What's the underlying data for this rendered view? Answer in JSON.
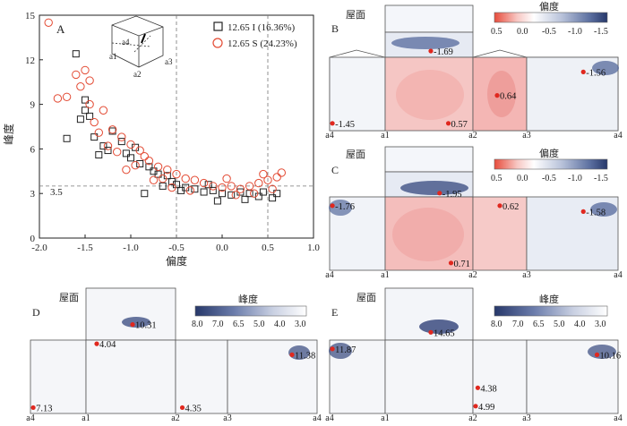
{
  "panels": {
    "A": {
      "label": "A",
      "xlabel": "偏度",
      "ylabel": "峰度",
      "hline_label": "3.5",
      "legend": [
        {
          "marker": "square",
          "label": "12.65 I (16.36%)",
          "color": "#222222"
        },
        {
          "marker": "circle",
          "label": "12.65 S (24.23%)",
          "color": "#e34a33"
        }
      ],
      "inset_labels": [
        "a1",
        "a2",
        "a3",
        "a4"
      ]
    },
    "B": {
      "label": "B",
      "roof_label": "屋面",
      "colorbar_title": "偏度"
    },
    "C": {
      "label": "C",
      "roof_label": "屋面",
      "colorbar_title": "偏度"
    },
    "D": {
      "label": "D",
      "roof_label": "屋面",
      "colorbar_title": "峰度"
    },
    "E": {
      "label": "E",
      "roof_label": "屋面",
      "colorbar_title": "峰度"
    }
  },
  "skew_colorbar": {
    "ticks": [
      "0.5",
      "0.0",
      "-0.5",
      "-1.0",
      "-1.5"
    ]
  },
  "kurt_colorbar": {
    "ticks": [
      "8.0",
      "7.0",
      "6.5",
      "5.0",
      "4.0",
      "3.0"
    ]
  },
  "corner_labels": [
    "a4",
    "a1",
    "a2",
    "a3",
    "a4"
  ],
  "annotations": {
    "B": [
      {
        "text": "-1.69",
        "face": "roof",
        "u": 0.52,
        "v": 0.75
      },
      {
        "text": "-1.56",
        "face": "f4",
        "u": 0.62,
        "v": 0.2
      },
      {
        "text": "-1.45",
        "face": "f1",
        "u": 0.05,
        "v": 0.9
      },
      {
        "text": "0.57",
        "face": "f2",
        "u": 0.72,
        "v": 0.9
      },
      {
        "text": "0.64",
        "face": "f3",
        "u": 0.45,
        "v": 0.52
      }
    ],
    "C": [
      {
        "text": "-1.95",
        "face": "roof",
        "u": 0.62,
        "v": 0.85
      },
      {
        "text": "-1.76",
        "face": "f1",
        "u": 0.05,
        "v": 0.12
      },
      {
        "text": "-1.58",
        "face": "f4",
        "u": 0.62,
        "v": 0.2
      },
      {
        "text": "0.62",
        "face": "f3",
        "u": 0.5,
        "v": 0.12
      },
      {
        "text": "0.71",
        "face": "f2",
        "u": 0.75,
        "v": 0.9
      }
    ],
    "D": [
      {
        "text": "10.31",
        "face": "roof",
        "u": 0.52,
        "v": 0.7
      },
      {
        "text": "4.04",
        "face": "f2",
        "u": 0.12,
        "v": 0.05
      },
      {
        "text": "11.38",
        "face": "f4",
        "u": 0.72,
        "v": 0.2
      },
      {
        "text": "7.13",
        "face": "f1",
        "u": 0.05,
        "v": 0.92
      },
      {
        "text": "4.35",
        "face": "f3",
        "u": 0.13,
        "v": 0.92
      }
    ],
    "E": [
      {
        "text": "14.65",
        "face": "roof",
        "u": 0.52,
        "v": 0.85
      },
      {
        "text": "11.87",
        "face": "f1",
        "u": 0.05,
        "v": 0.12
      },
      {
        "text": "10.16",
        "face": "f4",
        "u": 0.77,
        "v": 0.2
      },
      {
        "text": "4.38",
        "face": "f3",
        "u": 0.09,
        "v": 0.65
      },
      {
        "text": "4.99",
        "face": "f3",
        "u": 0.05,
        "v": 0.9
      }
    ]
  },
  "chart_data": {
    "type": "scatter",
    "xlabel": "偏度",
    "ylabel": "峰度",
    "xlim": [
      -2.0,
      1.0
    ],
    "ylim": [
      0,
      15
    ],
    "xticks": [
      -2.0,
      -1.5,
      -1.0,
      -0.5,
      0.0,
      0.5,
      1.0
    ],
    "yticks": [
      0,
      3,
      6,
      9,
      12,
      15
    ],
    "ref_lines": {
      "x": [
        -0.5,
        0.5
      ],
      "y": [
        3.5
      ]
    },
    "series": [
      {
        "name": "12.65 I (16.36%)",
        "marker": "square",
        "points": [
          [
            -1.6,
            12.4
          ],
          [
            -1.5,
            9.3
          ],
          [
            -1.45,
            8.2
          ],
          [
            -1.5,
            8.6
          ],
          [
            -1.55,
            8.0
          ],
          [
            -1.4,
            6.8
          ],
          [
            -1.7,
            6.7
          ],
          [
            -1.2,
            7.2
          ],
          [
            -1.1,
            6.5
          ],
          [
            -0.95,
            6.1
          ],
          [
            -1.3,
            6.2
          ],
          [
            -1.0,
            5.4
          ],
          [
            -0.9,
            5.0
          ],
          [
            -0.8,
            4.8
          ],
          [
            -0.75,
            4.5
          ],
          [
            -0.7,
            4.3
          ],
          [
            -0.6,
            4.2
          ],
          [
            -0.55,
            3.8
          ],
          [
            -0.5,
            3.6
          ],
          [
            -0.4,
            3.4
          ],
          [
            -0.3,
            3.3
          ],
          [
            -0.2,
            3.1
          ],
          [
            -0.1,
            3.2
          ],
          [
            0.0,
            3.0
          ],
          [
            0.1,
            2.9
          ],
          [
            0.2,
            3.1
          ],
          [
            0.3,
            3.0
          ],
          [
            0.4,
            2.8
          ],
          [
            0.45,
            3.1
          ],
          [
            0.55,
            2.7
          ],
          [
            -0.85,
            3.0
          ],
          [
            -0.65,
            3.5
          ],
          [
            -1.35,
            5.6
          ],
          [
            -1.25,
            5.9
          ],
          [
            -0.45,
            3.2
          ],
          [
            0.25,
            2.6
          ],
          [
            -0.05,
            2.5
          ],
          [
            0.6,
            3.0
          ],
          [
            -0.15,
            3.6
          ],
          [
            -1.05,
            5.7
          ]
        ]
      },
      {
        "name": "12.65 S (24.23%)",
        "marker": "circle",
        "points": [
          [
            -1.9,
            14.5
          ],
          [
            -1.6,
            11.0
          ],
          [
            -1.5,
            11.3
          ],
          [
            -1.55,
            10.2
          ],
          [
            -1.45,
            10.6
          ],
          [
            -1.8,
            9.4
          ],
          [
            -1.7,
            9.5
          ],
          [
            -1.45,
            9.0
          ],
          [
            -1.3,
            8.6
          ],
          [
            -1.4,
            7.8
          ],
          [
            -1.2,
            7.3
          ],
          [
            -1.1,
            6.8
          ],
          [
            -1.0,
            6.3
          ],
          [
            -0.9,
            5.9
          ],
          [
            -0.85,
            5.5
          ],
          [
            -0.8,
            5.2
          ],
          [
            -0.7,
            4.8
          ],
          [
            -0.6,
            4.6
          ],
          [
            -0.5,
            4.3
          ],
          [
            -0.4,
            4.0
          ],
          [
            -0.3,
            3.9
          ],
          [
            -0.2,
            3.7
          ],
          [
            -0.1,
            3.5
          ],
          [
            0.0,
            3.4
          ],
          [
            0.1,
            3.5
          ],
          [
            0.2,
            3.3
          ],
          [
            0.3,
            3.5
          ],
          [
            0.4,
            3.7
          ],
          [
            0.5,
            3.9
          ],
          [
            0.6,
            4.1
          ],
          [
            0.65,
            4.4
          ],
          [
            0.55,
            3.3
          ],
          [
            -0.95,
            4.9
          ],
          [
            -1.15,
            5.8
          ],
          [
            -0.75,
            3.9
          ],
          [
            -0.35,
            3.2
          ],
          [
            0.15,
            2.9
          ],
          [
            0.35,
            3.0
          ],
          [
            -0.55,
            3.4
          ],
          [
            -1.25,
            6.2
          ],
          [
            -1.05,
            4.6
          ],
          [
            0.45,
            4.3
          ],
          [
            -0.65,
            4.0
          ],
          [
            0.05,
            4.0
          ],
          [
            -1.35,
            7.1
          ]
        ]
      }
    ]
  }
}
